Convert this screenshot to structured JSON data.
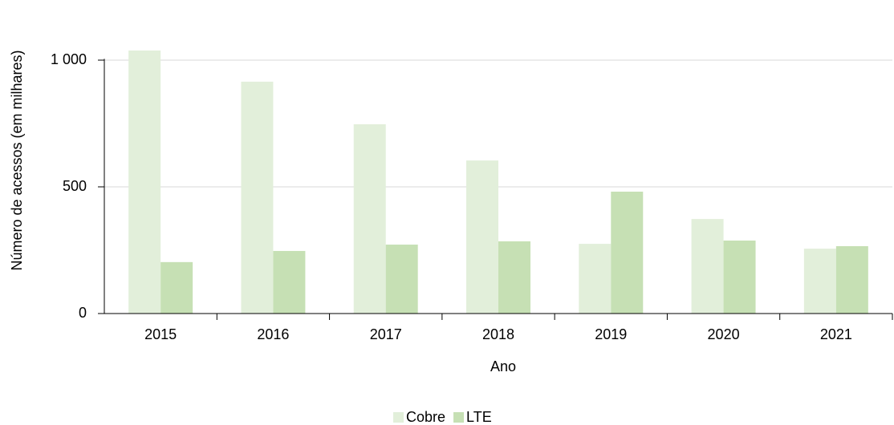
{
  "chart_data": {
    "type": "bar",
    "x_label": "Ano",
    "y_label": "Número de acessos (em milhares)",
    "categories": [
      "2015",
      "2016",
      "2017",
      "2018",
      "2019",
      "2020",
      "2021"
    ],
    "series": [
      {
        "name": "Cobre",
        "color": "#e2efda",
        "values": [
          1038,
          915,
          747,
          604,
          275,
          373,
          256
        ]
      },
      {
        "name": "LTE",
        "color": "#c6e0b4",
        "values": [
          203,
          247,
          272,
          285,
          481,
          288,
          266
        ]
      }
    ],
    "ylim": [
      0,
      1100
    ],
    "yticks": [
      0,
      500,
      {
        "value": 1000,
        "label": "1 000"
      }
    ],
    "grid": true,
    "legend": "bottom"
  }
}
